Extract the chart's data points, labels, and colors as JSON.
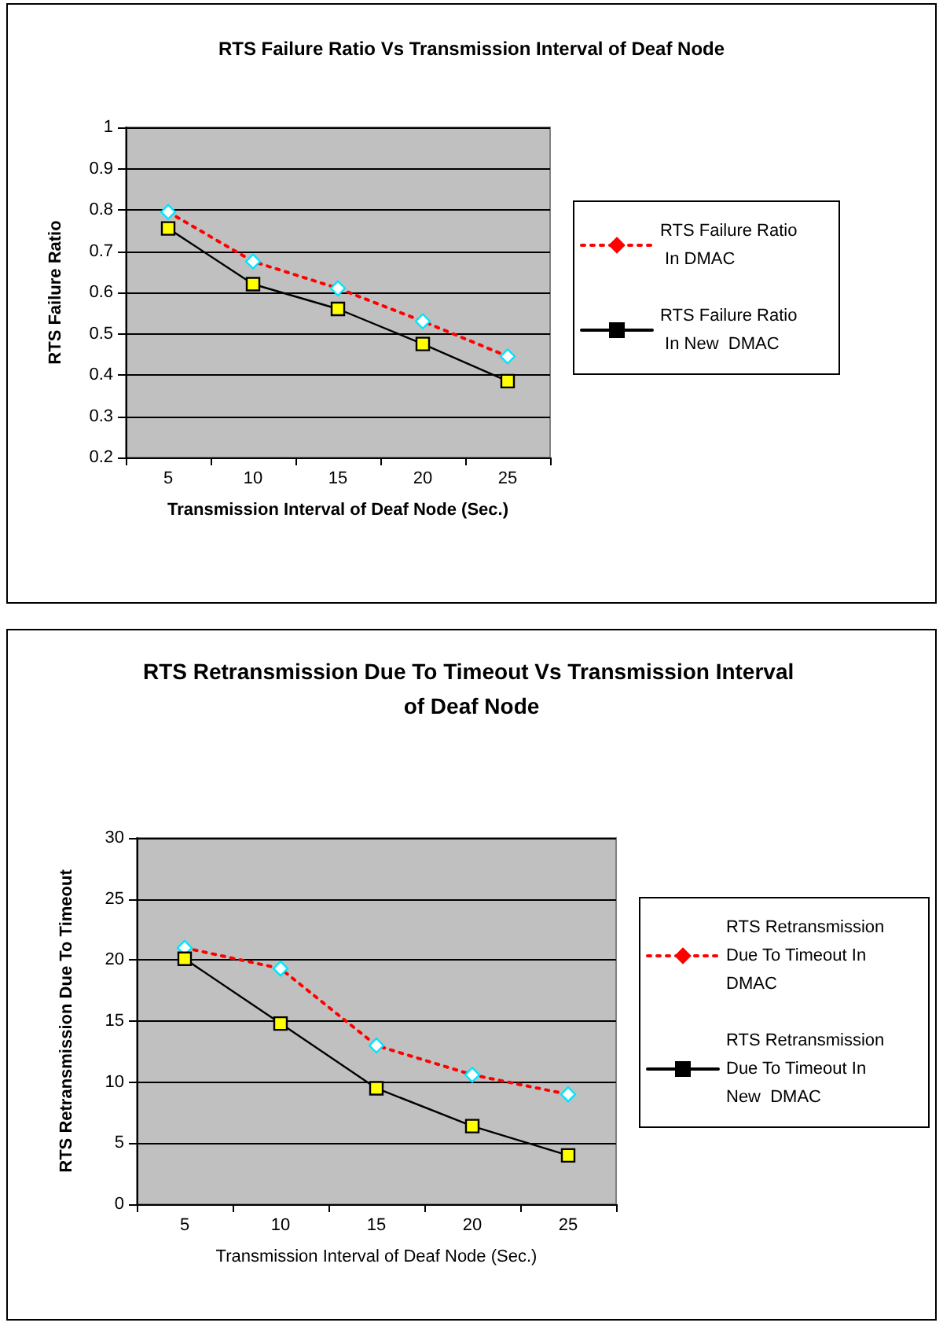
{
  "chart_data": [
    {
      "type": "line",
      "title": "RTS Failure Ratio Vs Transmission Interval of Deaf Node",
      "xlabel": "Transmission Interval of Deaf Node (Sec.)",
      "ylabel": "RTS Failure Ratio",
      "categories": [
        "5",
        "10",
        "15",
        "20",
        "25"
      ],
      "series": [
        {
          "name": "RTS Failure Ratio In DMAC",
          "color": "#ff0000",
          "marker": "diamond",
          "line_style": "dotted",
          "values": [
            0.795,
            0.675,
            0.61,
            0.53,
            0.445
          ]
        },
        {
          "name": "RTS Failure Ratio In New  DMAC",
          "color": "#000000",
          "marker": "square",
          "line_style": "solid",
          "values": [
            0.755,
            0.62,
            0.56,
            0.475,
            0.385
          ]
        }
      ],
      "ylim": [
        0.2,
        1
      ],
      "yticks": [
        0.2,
        0.3,
        0.4,
        0.5,
        0.6,
        0.7,
        0.8,
        0.9,
        1
      ],
      "grid": "y",
      "legend": "right"
    },
    {
      "type": "line",
      "title": "RTS Retransmission Due To Timeout Vs Transmission Interval of Deaf Node",
      "xlabel": "Transmission Interval of Deaf Node (Sec.)",
      "ylabel": "RTS Retransmission Due To Timeout",
      "categories": [
        "5",
        "10",
        "15",
        "20",
        "25"
      ],
      "series": [
        {
          "name": "RTS Retransmission Due To Timeout In DMAC",
          "color": "#ff0000",
          "marker": "diamond",
          "line_style": "dotted",
          "values": [
            21,
            19.3,
            13,
            10.6,
            9
          ]
        },
        {
          "name": "RTS Retransmission Due To Timeout In New  DMAC",
          "color": "#000000",
          "marker": "square",
          "line_style": "solid",
          "values": [
            20.1,
            14.8,
            9.5,
            6.4,
            4
          ]
        }
      ],
      "ylim": [
        0,
        30
      ],
      "yticks": [
        0,
        5,
        10,
        15,
        20,
        25,
        30
      ],
      "grid": "y",
      "legend": "right"
    }
  ]
}
